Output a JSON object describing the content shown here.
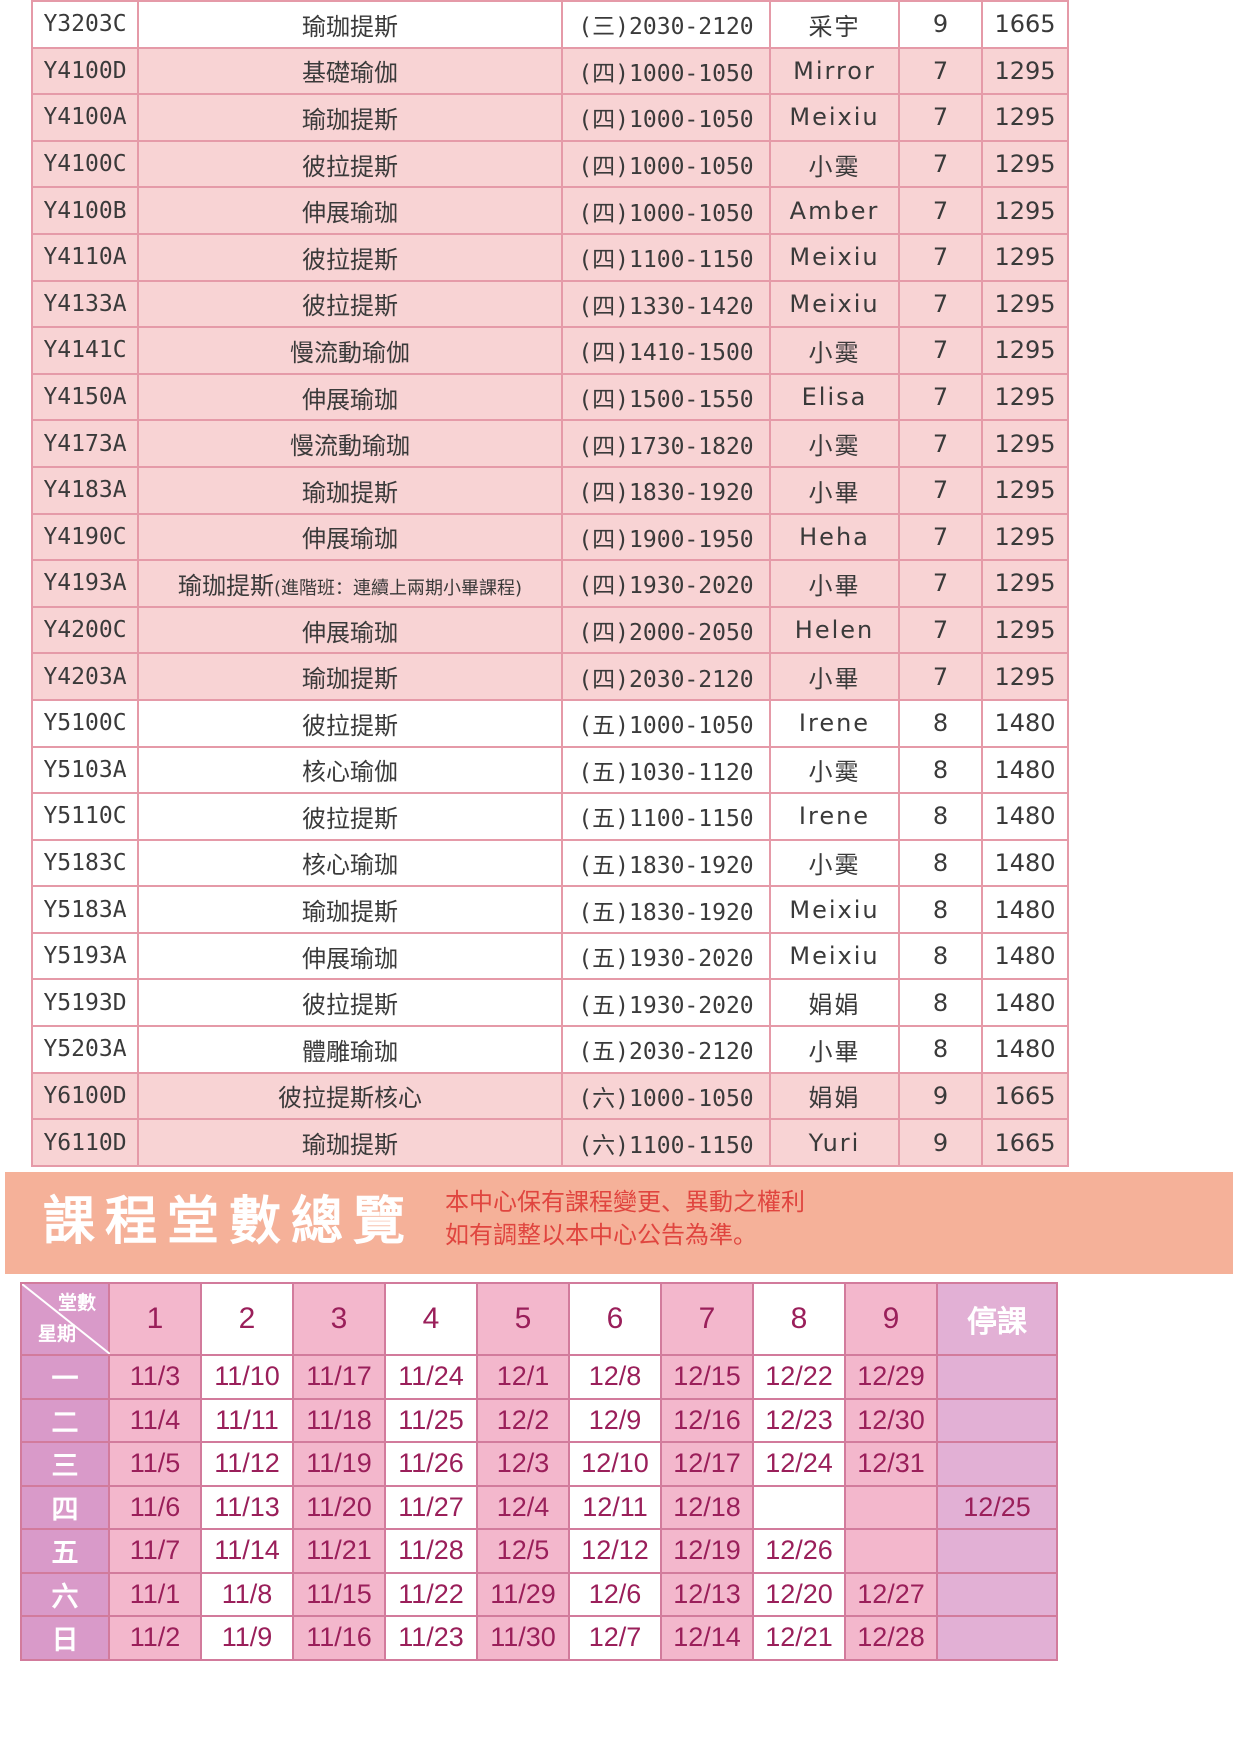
{
  "classes": [
    {
      "code": "Y3203C",
      "name": "瑜珈提斯",
      "note": "",
      "time": "(三)2030-2120",
      "teacher": "采宇",
      "sessions": "9",
      "price": "1665",
      "row": "white"
    },
    {
      "code": "Y4100D",
      "name": "基礎瑜伽",
      "note": "",
      "time": "(四)1000-1050",
      "teacher": "Mirror",
      "sessions": "7",
      "price": "1295",
      "row": "pink"
    },
    {
      "code": "Y4100A",
      "name": "瑜珈提斯",
      "note": "",
      "time": "(四)1000-1050",
      "teacher": "Meixiu",
      "sessions": "7",
      "price": "1295",
      "row": "pink"
    },
    {
      "code": "Y4100C",
      "name": "彼拉提斯",
      "note": "",
      "time": "(四)1000-1050",
      "teacher": "小霙",
      "sessions": "7",
      "price": "1295",
      "row": "pink"
    },
    {
      "code": "Y4100B",
      "name": "伸展瑜珈",
      "note": "",
      "time": "(四)1000-1050",
      "teacher": "Amber",
      "sessions": "7",
      "price": "1295",
      "row": "pink"
    },
    {
      "code": "Y4110A",
      "name": "彼拉提斯",
      "note": "",
      "time": "(四)1100-1150",
      "teacher": "Meixiu",
      "sessions": "7",
      "price": "1295",
      "row": "pink"
    },
    {
      "code": "Y4133A",
      "name": "彼拉提斯",
      "note": "",
      "time": "(四)1330-1420",
      "teacher": "Meixiu",
      "sessions": "7",
      "price": "1295",
      "row": "pink"
    },
    {
      "code": "Y4141C",
      "name": "慢流動瑜伽",
      "note": "",
      "time": "(四)1410-1500",
      "teacher": "小霙",
      "sessions": "7",
      "price": "1295",
      "row": "pink"
    },
    {
      "code": "Y4150A",
      "name": "伸展瑜珈",
      "note": "",
      "time": "(四)1500-1550",
      "teacher": "Elisa",
      "sessions": "7",
      "price": "1295",
      "row": "pink"
    },
    {
      "code": "Y4173A",
      "name": "慢流動瑜珈",
      "note": "",
      "time": "(四)1730-1820",
      "teacher": "小霙",
      "sessions": "7",
      "price": "1295",
      "row": "pink"
    },
    {
      "code": "Y4183A",
      "name": "瑜珈提斯",
      "note": "",
      "time": "(四)1830-1920",
      "teacher": "小畢",
      "sessions": "7",
      "price": "1295",
      "row": "pink"
    },
    {
      "code": "Y4190C",
      "name": "伸展瑜珈",
      "note": "",
      "time": "(四)1900-1950",
      "teacher": "Heha",
      "sessions": "7",
      "price": "1295",
      "row": "pink"
    },
    {
      "code": "Y4193A",
      "name": "瑜珈提斯",
      "note": "(進階班：連續上兩期小畢課程)",
      "time": "(四)1930-2020",
      "teacher": "小畢",
      "sessions": "7",
      "price": "1295",
      "row": "pink"
    },
    {
      "code": "Y4200C",
      "name": "伸展瑜珈",
      "note": "",
      "time": "(四)2000-2050",
      "teacher": "Helen",
      "sessions": "7",
      "price": "1295",
      "row": "pink"
    },
    {
      "code": "Y4203A",
      "name": "瑜珈提斯",
      "note": "",
      "time": "(四)2030-2120",
      "teacher": "小畢",
      "sessions": "7",
      "price": "1295",
      "row": "pink"
    },
    {
      "code": "Y5100C",
      "name": "彼拉提斯",
      "note": "",
      "time": "(五)1000-1050",
      "teacher": "Irene",
      "sessions": "8",
      "price": "1480",
      "row": "white"
    },
    {
      "code": "Y5103A",
      "name": "核心瑜伽",
      "note": "",
      "time": "(五)1030-1120",
      "teacher": "小霙",
      "sessions": "8",
      "price": "1480",
      "row": "white"
    },
    {
      "code": "Y5110C",
      "name": "彼拉提斯",
      "note": "",
      "time": "(五)1100-1150",
      "teacher": "Irene",
      "sessions": "8",
      "price": "1480",
      "row": "white"
    },
    {
      "code": "Y5183C",
      "name": "核心瑜珈",
      "note": "",
      "time": "(五)1830-1920",
      "teacher": "小霙",
      "sessions": "8",
      "price": "1480",
      "row": "white"
    },
    {
      "code": "Y5183A",
      "name": "瑜珈提斯",
      "note": "",
      "time": "(五)1830-1920",
      "teacher": "Meixiu",
      "sessions": "8",
      "price": "1480",
      "row": "white"
    },
    {
      "code": "Y5193A",
      "name": "伸展瑜珈",
      "note": "",
      "time": "(五)1930-2020",
      "teacher": "Meixiu",
      "sessions": "8",
      "price": "1480",
      "row": "white"
    },
    {
      "code": "Y5193D",
      "name": "彼拉提斯",
      "note": "",
      "time": "(五)1930-2020",
      "teacher": "娟娟",
      "sessions": "8",
      "price": "1480",
      "row": "white"
    },
    {
      "code": "Y5203A",
      "name": "體雕瑜珈",
      "note": "",
      "time": "(五)2030-2120",
      "teacher": "小畢",
      "sessions": "8",
      "price": "1480",
      "row": "white"
    },
    {
      "code": "Y6100D",
      "name": "彼拉提斯核心",
      "note": "",
      "time": "(六)1000-1050",
      "teacher": "娟娟",
      "sessions": "9",
      "price": "1665",
      "row": "pink"
    },
    {
      "code": "Y6110D",
      "name": "瑜珈提斯",
      "note": "",
      "time": "(六)1100-1150",
      "teacher": "Yuri",
      "sessions": "9",
      "price": "1665",
      "row": "pink"
    }
  ],
  "banner": {
    "title": "課程堂數總覽",
    "note_line1": "本中心保有課程變更、異動之權利",
    "note_line2": "如有調整以本中心公告為準。"
  },
  "count_table": {
    "corner_top": "堂數",
    "corner_bottom": "星期",
    "headers": [
      "1",
      "2",
      "3",
      "4",
      "5",
      "6",
      "7",
      "8",
      "9"
    ],
    "stop_header": "停課",
    "rows": [
      {
        "day": "一",
        "dates": [
          "11/3",
          "11/10",
          "11/17",
          "11/24",
          "12/1",
          "12/8",
          "12/15",
          "12/22",
          "12/29"
        ],
        "stop": ""
      },
      {
        "day": "二",
        "dates": [
          "11/4",
          "11/11",
          "11/18",
          "11/25",
          "12/2",
          "12/9",
          "12/16",
          "12/23",
          "12/30"
        ],
        "stop": ""
      },
      {
        "day": "三",
        "dates": [
          "11/5",
          "11/12",
          "11/19",
          "11/26",
          "12/3",
          "12/10",
          "12/17",
          "12/24",
          "12/31"
        ],
        "stop": ""
      },
      {
        "day": "四",
        "dates": [
          "11/6",
          "11/13",
          "11/20",
          "11/27",
          "12/4",
          "12/11",
          "12/18",
          "",
          ""
        ],
        "stop": "12/25"
      },
      {
        "day": "五",
        "dates": [
          "11/7",
          "11/14",
          "11/21",
          "11/28",
          "12/5",
          "12/12",
          "12/19",
          "12/26",
          ""
        ],
        "stop": ""
      },
      {
        "day": "六",
        "dates": [
          "11/1",
          "11/8",
          "11/15",
          "11/22",
          "11/29",
          "12/6",
          "12/13",
          "12/20",
          "12/27"
        ],
        "stop": ""
      },
      {
        "day": "日",
        "dates": [
          "11/2",
          "11/9",
          "11/16",
          "11/23",
          "11/30",
          "12/7",
          "12/14",
          "12/21",
          "12/28"
        ],
        "stop": ""
      }
    ]
  },
  "colors": {
    "pink_row": "#f8d3d4",
    "table_border": "#e59aa8",
    "banner_bg": "#f5b199",
    "banner_note": "#e0453f",
    "count_pink": "#f3b7cc",
    "count_text": "#9a1f5a",
    "day_cell": "#d99ac9",
    "stop_cell": "#e2b0d5"
  }
}
